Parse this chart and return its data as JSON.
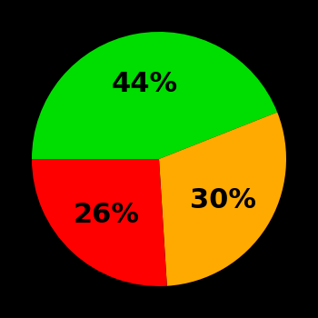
{
  "slices": [
    44,
    30,
    26
  ],
  "colors": [
    "#00dd00",
    "#ffaa00",
    "#ff0000"
  ],
  "labels": [
    "44%",
    "30%",
    "26%"
  ],
  "background_color": "#000000",
  "label_fontsize": 22,
  "label_fontweight": "bold",
  "startangle": 180,
  "counterclock": false
}
